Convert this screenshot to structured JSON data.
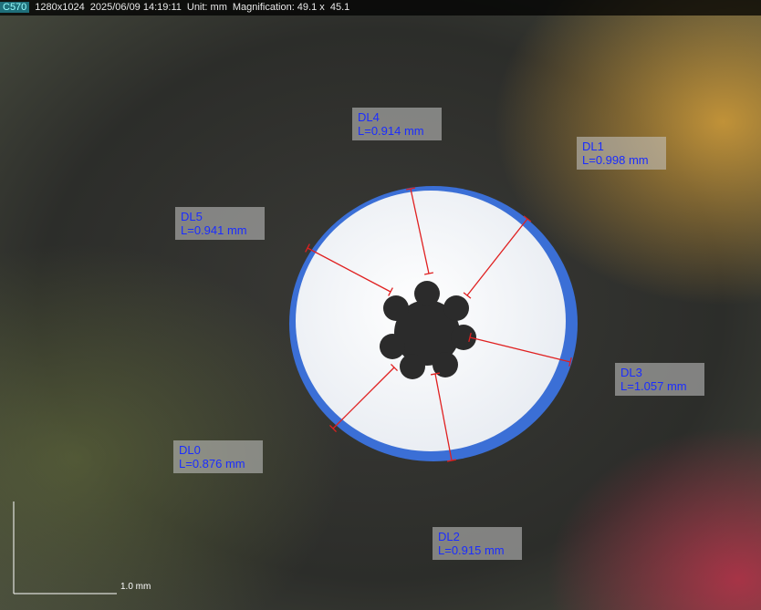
{
  "header": {
    "camera": "C570",
    "resolution": "1280x1024",
    "datetime": "2025/06/09 14:19:11",
    "unit": "Unit: mm",
    "magnification": "Magnification: 49.1 x  45.1"
  },
  "measurements": [
    {
      "name": "DL0",
      "length": "L=0.876 mm"
    },
    {
      "name": "DL1",
      "length": "L=0.998 mm"
    },
    {
      "name": "DL2",
      "length": "L=0.915 mm"
    },
    {
      "name": "DL3",
      "length": "L=1.057 mm"
    },
    {
      "name": "DL4",
      "length": "L=0.914 mm"
    },
    {
      "name": "DL5",
      "length": "L=0.941 mm"
    }
  ],
  "scale_bar": "1.0 mm"
}
